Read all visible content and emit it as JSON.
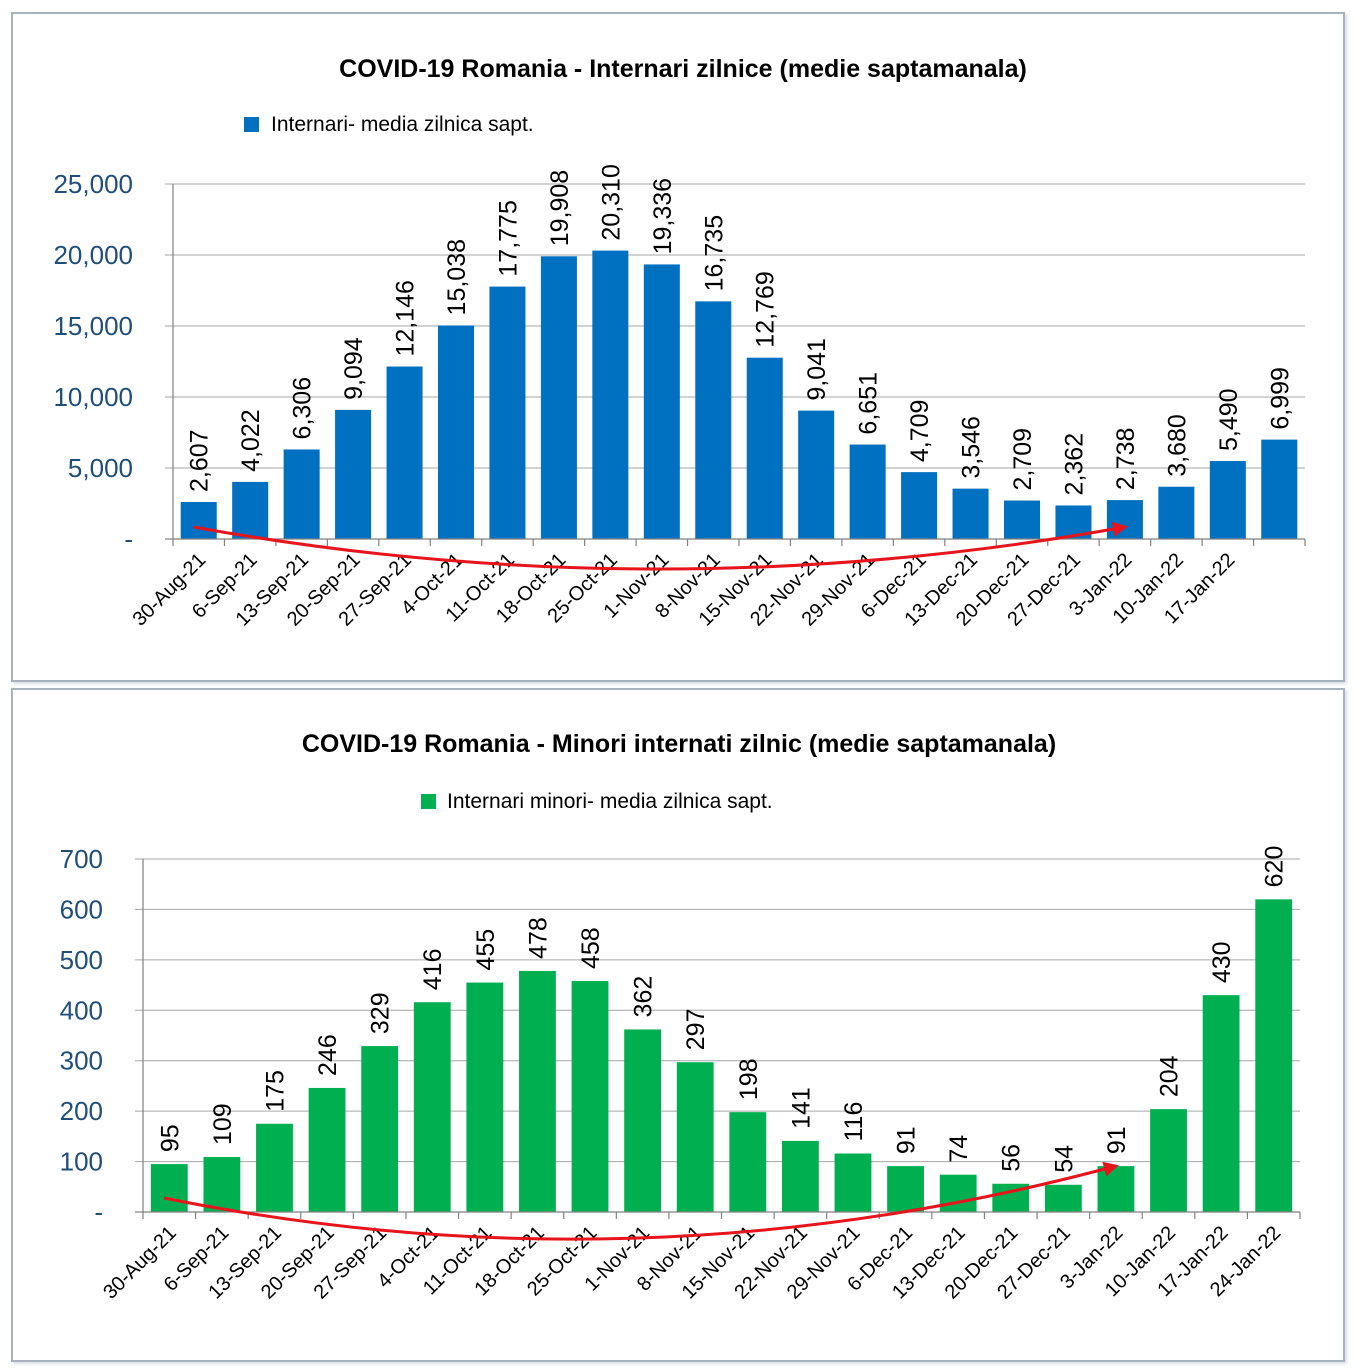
{
  "chart_data": [
    {
      "type": "bar",
      "title": "COVID-19 Romania - Internari zilnice (medie saptamanala)",
      "legend": [
        "Internari- media zilnica sapt."
      ],
      "legend_position": "top-left",
      "categories": [
        "30-Aug-21",
        "6-Sep-21",
        "13-Sep-21",
        "20-Sep-21",
        "27-Sep-21",
        "4-Oct-21",
        "11-Oct-21",
        "18-Oct-21",
        "25-Oct-21",
        "1-Nov-21",
        "8-Nov-21",
        "15-Nov-21",
        "22-Nov-21",
        "29-Nov-21",
        "6-Dec-21",
        "13-Dec-21",
        "20-Dec-21",
        "27-Dec-21",
        "3-Jan-22",
        "10-Jan-22",
        "17-Jan-22",
        ""
      ],
      "values": [
        2607,
        4022,
        6306,
        9094,
        12146,
        15038,
        17775,
        19908,
        20310,
        19336,
        16735,
        12769,
        9041,
        6651,
        4709,
        3546,
        2709,
        2362,
        2738,
        3680,
        5490,
        6999
      ],
      "data_labels": [
        "2,607",
        "4,022",
        "6,306",
        "9,094",
        "12,146",
        "15,038",
        "17,775",
        "19,908",
        "20,310",
        "19,336",
        "16,735",
        "12,769",
        "9,041",
        "6,651",
        "4,709",
        "3,546",
        "2,709",
        "2,362",
        "2,738",
        "3,680",
        "5,490",
        "6,999"
      ],
      "xlabel": "",
      "ylabel": "",
      "ylim": [
        0,
        25000
      ],
      "yticks": [
        0,
        5000,
        10000,
        15000,
        20000,
        25000
      ],
      "ytick_labels": [
        "-",
        "5,000",
        "10,000",
        "15,000",
        "20,000",
        "25,000"
      ],
      "grid": true,
      "color": "#0070c0",
      "annotation": {
        "type": "curved-arrow",
        "from_category": "30-Aug-21",
        "to_category": "3-Jan-22",
        "color": "#e8141b"
      }
    },
    {
      "type": "bar",
      "title": "COVID-19 Romania - Minori internati zilnic (medie saptamanala)",
      "legend": [
        "Internari minori- media zilnica sapt."
      ],
      "legend_position": "top-center",
      "categories": [
        "30-Aug-21",
        "6-Sep-21",
        "13-Sep-21",
        "20-Sep-21",
        "27-Sep-21",
        "4-Oct-21",
        "11-Oct-21",
        "18-Oct-21",
        "25-Oct-21",
        "1-Nov-21",
        "8-Nov-21",
        "15-Nov-21",
        "22-Nov-21",
        "29-Nov-21",
        "6-Dec-21",
        "13-Dec-21",
        "20-Dec-21",
        "27-Dec-21",
        "3-Jan-22",
        "10-Jan-22",
        "17-Jan-22",
        "24-Jan-22"
      ],
      "values": [
        95,
        109,
        175,
        246,
        329,
        416,
        455,
        478,
        458,
        362,
        297,
        198,
        141,
        116,
        91,
        74,
        56,
        54,
        91,
        204,
        430,
        620
      ],
      "data_labels": [
        "95",
        "109",
        "175",
        "246",
        "329",
        "416",
        "455",
        "478",
        "458",
        "362",
        "297",
        "198",
        "141",
        "116",
        "91",
        "74",
        "56",
        "54",
        "91",
        "204",
        "430",
        "620"
      ],
      "xlabel": "",
      "ylabel": "",
      "ylim": [
        0,
        700
      ],
      "yticks": [
        0,
        100,
        200,
        300,
        400,
        500,
        600,
        700
      ],
      "ytick_labels": [
        "-",
        "100",
        "200",
        "300",
        "400",
        "500",
        "600",
        "700"
      ],
      "grid": true,
      "color": "#00b050",
      "annotation": {
        "type": "curved-arrow",
        "from_category": "30-Aug-21",
        "to_category": "3-Jan-22",
        "color": "#e8141b"
      }
    }
  ]
}
